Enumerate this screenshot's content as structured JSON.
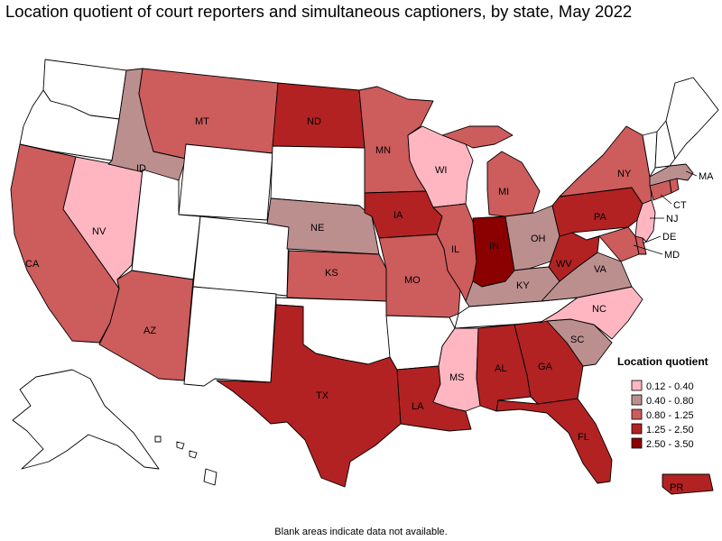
{
  "title": "Location quotient of court reporters and simultaneous captioners, by state, May 2022",
  "footnote": "Blank areas indicate data not available.",
  "legend": {
    "title": "Location quotient",
    "ranges": [
      {
        "label": "0.12 - 0.40",
        "color": "#ffb6c1"
      },
      {
        "label": "0.40 - 0.80",
        "color": "#bc8f8f"
      },
      {
        "label": "0.80 - 1.25",
        "color": "#cd5c5c"
      },
      {
        "label": "1.25 - 2.50",
        "color": "#b22222"
      },
      {
        "label": "2.50 - 3.50",
        "color": "#8b0000"
      }
    ]
  },
  "colors": {
    "no_data": "#ffffff",
    "border": "#000000"
  },
  "states": [
    {
      "abbr": "WA",
      "range": null
    },
    {
      "abbr": "OR",
      "range": null
    },
    {
      "abbr": "CA",
      "range": 2,
      "label": "CA"
    },
    {
      "abbr": "NV",
      "range": 0,
      "label": "NV"
    },
    {
      "abbr": "ID",
      "range": 1,
      "label": "ID"
    },
    {
      "abbr": "MT",
      "range": 2,
      "label": "MT"
    },
    {
      "abbr": "WY",
      "range": null
    },
    {
      "abbr": "UT",
      "range": null
    },
    {
      "abbr": "AZ",
      "range": 2,
      "label": "AZ"
    },
    {
      "abbr": "CO",
      "range": null
    },
    {
      "abbr": "NM",
      "range": null
    },
    {
      "abbr": "ND",
      "range": 3,
      "label": "ND"
    },
    {
      "abbr": "SD",
      "range": null
    },
    {
      "abbr": "NE",
      "range": 1,
      "label": "NE"
    },
    {
      "abbr": "KS",
      "range": 2,
      "label": "KS"
    },
    {
      "abbr": "OK",
      "range": null
    },
    {
      "abbr": "TX",
      "range": 3,
      "label": "TX"
    },
    {
      "abbr": "MN",
      "range": 2,
      "label": "MN"
    },
    {
      "abbr": "IA",
      "range": 3,
      "label": "IA"
    },
    {
      "abbr": "MO",
      "range": 2,
      "label": "MO"
    },
    {
      "abbr": "AR",
      "range": null
    },
    {
      "abbr": "LA",
      "range": 3,
      "label": "LA"
    },
    {
      "abbr": "WI",
      "range": 0,
      "label": "WI"
    },
    {
      "abbr": "IL",
      "range": 2,
      "label": "IL"
    },
    {
      "abbr": "MI",
      "range": 2,
      "label": "MI"
    },
    {
      "abbr": "IN",
      "range": 4,
      "label": "IN"
    },
    {
      "abbr": "OH",
      "range": 1,
      "label": "OH"
    },
    {
      "abbr": "KY",
      "range": 1,
      "label": "KY"
    },
    {
      "abbr": "TN",
      "range": null
    },
    {
      "abbr": "MS",
      "range": 0,
      "label": "MS"
    },
    {
      "abbr": "AL",
      "range": 3,
      "label": "AL"
    },
    {
      "abbr": "GA",
      "range": 3,
      "label": "GA"
    },
    {
      "abbr": "FL",
      "range": 3,
      "label": "FL"
    },
    {
      "abbr": "SC",
      "range": 1,
      "label": "SC"
    },
    {
      "abbr": "NC",
      "range": 0,
      "label": "NC"
    },
    {
      "abbr": "VA",
      "range": 1,
      "label": "VA"
    },
    {
      "abbr": "WV",
      "range": 3,
      "label": "WV"
    },
    {
      "abbr": "PA",
      "range": 3,
      "label": "PA"
    },
    {
      "abbr": "NY",
      "range": 2,
      "label": "NY"
    },
    {
      "abbr": "MD",
      "range": 2,
      "label": "MD"
    },
    {
      "abbr": "DE",
      "range": 2,
      "label": "DE"
    },
    {
      "abbr": "NJ",
      "range": 0,
      "label": "NJ"
    },
    {
      "abbr": "CT",
      "range": 2,
      "label": "CT"
    },
    {
      "abbr": "MA",
      "range": 1,
      "label": "MA"
    },
    {
      "abbr": "RI",
      "range": 2
    },
    {
      "abbr": "VT",
      "range": null
    },
    {
      "abbr": "NH",
      "range": null
    },
    {
      "abbr": "ME",
      "range": null
    },
    {
      "abbr": "AK",
      "range": null
    },
    {
      "abbr": "HI",
      "range": null
    },
    {
      "abbr": "PR",
      "range": 3,
      "label": "PR"
    }
  ]
}
